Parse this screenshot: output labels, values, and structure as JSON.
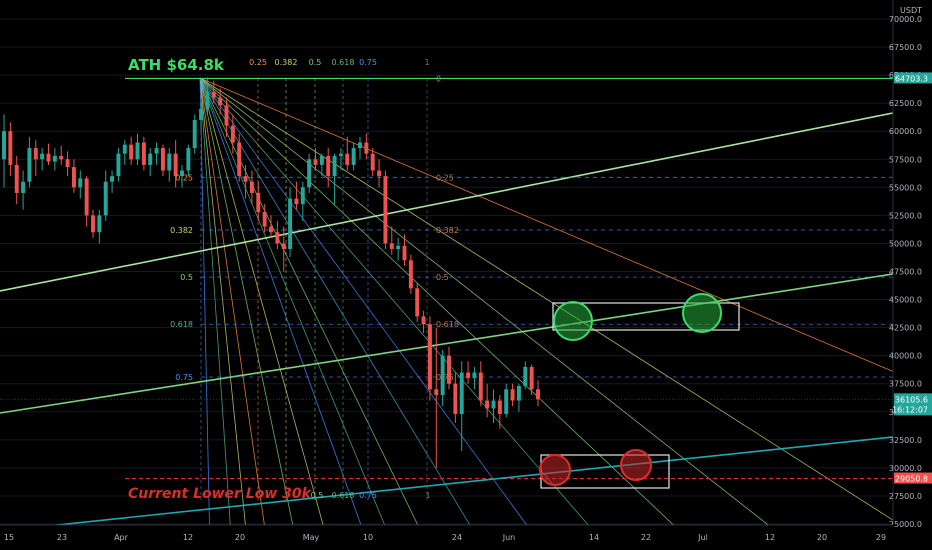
{
  "chart_data": {
    "type": "candlestick",
    "currency": "USDT",
    "ylim": [
      24000,
      72500
    ],
    "y_ticks": [
      25000,
      27500,
      30000,
      32500,
      35000,
      37500,
      40000,
      42500,
      45000,
      47500,
      50000,
      52500,
      55000,
      57500,
      60000,
      62500,
      65000,
      67500,
      70000
    ],
    "y_tick_labels": [
      "25000.0",
      "27500.0",
      "30000.0",
      "32500.0",
      "35000.0",
      "37500.0",
      "40000.0",
      "42500.0",
      "45000.0",
      "47500.0",
      "50000.0",
      "52500.0",
      "55000.0",
      "57500.0",
      "60000.0",
      "62500.0",
      "65000.0",
      "67500.0",
      "70000.0"
    ],
    "x_tick_labels": [
      "15",
      "23",
      "Apr",
      "12",
      "20",
      "May",
      "10",
      "24",
      "Jun",
      "14",
      "22",
      "Jul",
      "12",
      "20",
      "29"
    ],
    "price_labels": {
      "ath_level": {
        "value": 64703.3,
        "text": "64703.3",
        "color": "#26a69a"
      },
      "current": {
        "value": 36105.6,
        "text": "36105.6",
        "subtext": "16:12:07",
        "color": "#26a69a"
      },
      "lower_low": {
        "value": 29050.8,
        "text": "29050.8",
        "color": "#ef5350"
      }
    },
    "annotations": {
      "ath": "ATH $64.8k",
      "lower_low": "Current Lower Low 30k"
    },
    "fib_levels_top": [
      "0.25",
      "0.382",
      "0.5",
      "0.618",
      "0.75",
      "1"
    ],
    "fib_levels_top_colors": [
      "#ff8c3a",
      "#c8d66a",
      "#7bd36a",
      "#4fb38a",
      "#4a8cff",
      "#787b86"
    ],
    "fib_levels_left": [
      {
        "label": "0.25",
        "value": 55895,
        "color": "#ff8c3a"
      },
      {
        "label": "0.382",
        "value": 51200,
        "color": "#c8d66a"
      },
      {
        "label": "0.5",
        "value": 47000,
        "color": "#7bd36a"
      },
      {
        "label": "0.618",
        "value": 42800,
        "color": "#4fb38a"
      },
      {
        "label": "0.75",
        "value": 38100,
        "color": "#4a8cff"
      }
    ],
    "fib_levels_right": [
      {
        "label": "0",
        "value": 64703
      },
      {
        "label": "0.25",
        "value": 55895
      },
      {
        "label": "0.382",
        "value": 51200
      },
      {
        "label": "0.5",
        "value": 47000
      },
      {
        "label": "0.618",
        "value": 42800
      },
      {
        "label": "0.75",
        "value": 38100
      },
      {
        "label": "1",
        "value": 29050
      }
    ],
    "fib_labels_bottom": [
      "0.5",
      "0.618",
      "0.75"
    ],
    "fib_level_0_top": "0",
    "candles": [
      {
        "o": 57500,
        "h": 61500,
        "l": 55000,
        "c": 60000
      },
      {
        "o": 60000,
        "h": 60800,
        "l": 56000,
        "c": 57000
      },
      {
        "o": 57000,
        "h": 57800,
        "l": 53500,
        "c": 54500
      },
      {
        "o": 54500,
        "h": 56500,
        "l": 53000,
        "c": 55500
      },
      {
        "o": 55500,
        "h": 59500,
        "l": 55000,
        "c": 58500
      },
      {
        "o": 58500,
        "h": 59200,
        "l": 56000,
        "c": 57500
      },
      {
        "o": 57500,
        "h": 58500,
        "l": 56500,
        "c": 58000
      },
      {
        "o": 58000,
        "h": 58900,
        "l": 57000,
        "c": 57300
      },
      {
        "o": 57300,
        "h": 58500,
        "l": 56500,
        "c": 57800
      },
      {
        "o": 57800,
        "h": 58700,
        "l": 57000,
        "c": 57500
      },
      {
        "o": 57500,
        "h": 58200,
        "l": 56000,
        "c": 56800
      },
      {
        "o": 56800,
        "h": 57500,
        "l": 54500,
        "c": 55000
      },
      {
        "o": 55000,
        "h": 56500,
        "l": 54000,
        "c": 55800
      },
      {
        "o": 55800,
        "h": 56000,
        "l": 51500,
        "c": 52500
      },
      {
        "o": 52500,
        "h": 53000,
        "l": 50500,
        "c": 51000
      },
      {
        "o": 51000,
        "h": 53000,
        "l": 50000,
        "c": 52500
      },
      {
        "o": 52500,
        "h": 56500,
        "l": 52000,
        "c": 55500
      },
      {
        "o": 55500,
        "h": 56500,
        "l": 54500,
        "c": 56000
      },
      {
        "o": 56000,
        "h": 58500,
        "l": 55500,
        "c": 58000
      },
      {
        "o": 58000,
        "h": 59200,
        "l": 57000,
        "c": 58800
      },
      {
        "o": 58800,
        "h": 59500,
        "l": 57000,
        "c": 57500
      },
      {
        "o": 57500,
        "h": 59800,
        "l": 57000,
        "c": 59000
      },
      {
        "o": 59000,
        "h": 59500,
        "l": 56500,
        "c": 57000
      },
      {
        "o": 57000,
        "h": 58500,
        "l": 56000,
        "c": 58000
      },
      {
        "o": 58000,
        "h": 59000,
        "l": 57000,
        "c": 58500
      },
      {
        "o": 58500,
        "h": 58800,
        "l": 56000,
        "c": 56500
      },
      {
        "o": 56500,
        "h": 58500,
        "l": 55500,
        "c": 58000
      },
      {
        "o": 58000,
        "h": 59200,
        "l": 55000,
        "c": 56000
      },
      {
        "o": 56000,
        "h": 57000,
        "l": 55000,
        "c": 56500
      },
      {
        "o": 56500,
        "h": 58800,
        "l": 56000,
        "c": 58500
      },
      {
        "o": 58500,
        "h": 61500,
        "l": 58000,
        "c": 61000
      },
      {
        "o": 61000,
        "h": 62500,
        "l": 60000,
        "c": 62000
      },
      {
        "o": 62000,
        "h": 64800,
        "l": 61500,
        "c": 63500
      },
      {
        "o": 63500,
        "h": 64500,
        "l": 62500,
        "c": 63000
      },
      {
        "o": 63000,
        "h": 63800,
        "l": 61500,
        "c": 62300
      },
      {
        "o": 62300,
        "h": 63000,
        "l": 59500,
        "c": 60500
      },
      {
        "o": 60500,
        "h": 61500,
        "l": 58000,
        "c": 59000
      },
      {
        "o": 59000,
        "h": 59800,
        "l": 55500,
        "c": 56000
      },
      {
        "o": 56000,
        "h": 57000,
        "l": 54000,
        "c": 55500
      },
      {
        "o": 55500,
        "h": 56500,
        "l": 53500,
        "c": 54500
      },
      {
        "o": 54500,
        "h": 55500,
        "l": 52000,
        "c": 52800
      },
      {
        "o": 52800,
        "h": 53500,
        "l": 51000,
        "c": 51500
      },
      {
        "o": 51500,
        "h": 52500,
        "l": 50500,
        "c": 51000
      },
      {
        "o": 51000,
        "h": 52000,
        "l": 49500,
        "c": 50000
      },
      {
        "o": 50000,
        "h": 51500,
        "l": 47500,
        "c": 49500
      },
      {
        "o": 49500,
        "h": 55000,
        "l": 48800,
        "c": 54000
      },
      {
        "o": 54000,
        "h": 55500,
        "l": 53000,
        "c": 53500
      },
      {
        "o": 53500,
        "h": 55500,
        "l": 52000,
        "c": 55000
      },
      {
        "o": 55000,
        "h": 58000,
        "l": 54500,
        "c": 57500
      },
      {
        "o": 57500,
        "h": 58500,
        "l": 56500,
        "c": 57000
      },
      {
        "o": 57000,
        "h": 58000,
        "l": 56000,
        "c": 57800
      },
      {
        "o": 57800,
        "h": 58500,
        "l": 55000,
        "c": 56000
      },
      {
        "o": 56000,
        "h": 58000,
        "l": 53500,
        "c": 57800
      },
      {
        "o": 57800,
        "h": 58500,
        "l": 56500,
        "c": 58000
      },
      {
        "o": 58000,
        "h": 59500,
        "l": 56500,
        "c": 57000
      },
      {
        "o": 57000,
        "h": 59000,
        "l": 56500,
        "c": 58500
      },
      {
        "o": 58500,
        "h": 59500,
        "l": 57500,
        "c": 59000
      },
      {
        "o": 59000,
        "h": 59800,
        "l": 57500,
        "c": 58000
      },
      {
        "o": 58000,
        "h": 58500,
        "l": 56000,
        "c": 56500
      },
      {
        "o": 56500,
        "h": 57500,
        "l": 55000,
        "c": 56000
      },
      {
        "o": 56000,
        "h": 56500,
        "l": 49500,
        "c": 50000
      },
      {
        "o": 50000,
        "h": 51500,
        "l": 49000,
        "c": 49500
      },
      {
        "o": 49500,
        "h": 50500,
        "l": 48500,
        "c": 49800
      },
      {
        "o": 49800,
        "h": 50800,
        "l": 48000,
        "c": 48500
      },
      {
        "o": 48500,
        "h": 49000,
        "l": 45500,
        "c": 46000
      },
      {
        "o": 46000,
        "h": 46500,
        "l": 43000,
        "c": 43500
      },
      {
        "o": 43500,
        "h": 44000,
        "l": 42000,
        "c": 42800
      },
      {
        "o": 42800,
        "h": 43500,
        "l": 36000,
        "c": 37000
      },
      {
        "o": 37000,
        "h": 42500,
        "l": 30000,
        "c": 36500
      },
      {
        "o": 36500,
        "h": 40500,
        "l": 35500,
        "c": 40000
      },
      {
        "o": 40000,
        "h": 40800,
        "l": 37000,
        "c": 37500
      },
      {
        "o": 37500,
        "h": 38500,
        "l": 34000,
        "c": 34800
      },
      {
        "o": 34800,
        "h": 39500,
        "l": 31500,
        "c": 38500
      },
      {
        "o": 38500,
        "h": 39500,
        "l": 37500,
        "c": 38000
      },
      {
        "o": 38000,
        "h": 39000,
        "l": 37000,
        "c": 38500
      },
      {
        "o": 38500,
        "h": 39500,
        "l": 35500,
        "c": 36000
      },
      {
        "o": 36000,
        "h": 37500,
        "l": 34500,
        "c": 35300
      },
      {
        "o": 35300,
        "h": 37000,
        "l": 34000,
        "c": 36000
      },
      {
        "o": 36000,
        "h": 36500,
        "l": 33500,
        "c": 34800
      },
      {
        "o": 34800,
        "h": 37500,
        "l": 34500,
        "c": 37000
      },
      {
        "o": 37000,
        "h": 37500,
        "l": 35500,
        "c": 36000
      },
      {
        "o": 36000,
        "h": 37500,
        "l": 35000,
        "c": 37300
      },
      {
        "o": 37300,
        "h": 39500,
        "l": 37000,
        "c": 39000
      },
      {
        "o": 39000,
        "h": 39200,
        "l": 36500,
        "c": 37000
      },
      {
        "o": 37000,
        "h": 37800,
        "l": 35500,
        "c": 36105.6
      }
    ],
    "colors": {
      "up": "#26a69a",
      "down": "#ef5350",
      "background": "#000000",
      "grid": "#1a1d26",
      "trendline_green": "#7fd47f",
      "trendline_blue": "#1fa8b0",
      "ath_line": "#3ddc6a",
      "lower_low_line": "#e02b2b"
    }
  }
}
